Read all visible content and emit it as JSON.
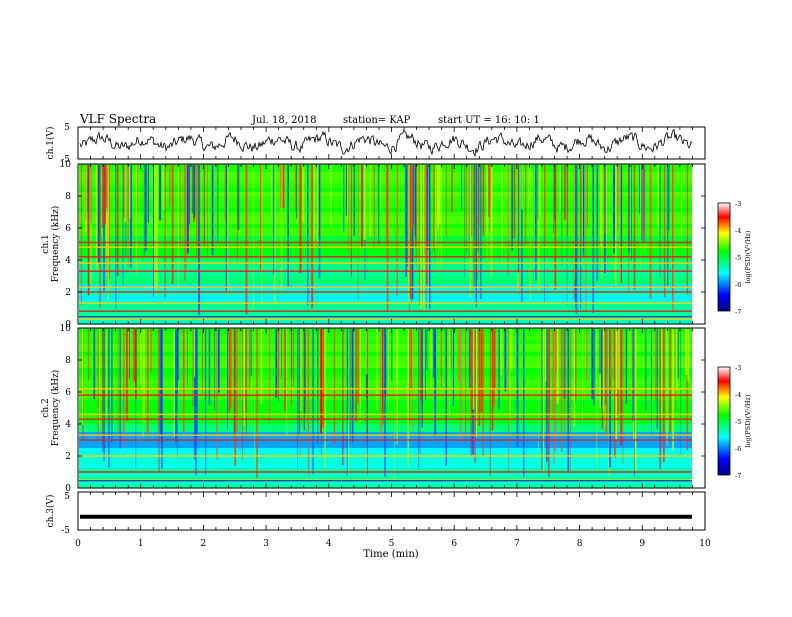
{
  "header": {
    "title": "VLF Spectra",
    "date": "Jul. 18, 2018",
    "station": "station= KAP",
    "start": "start UT = 16: 10: 1"
  },
  "chart_data": [
    {
      "type": "line",
      "ylabel": "ch.1(V)",
      "ylim": [
        -5,
        5
      ],
      "yticks": [
        "5",
        "-5"
      ],
      "xlim": [
        0,
        10
      ],
      "description_values": {
        "baseline": 0,
        "amplitude_approx": 2.5
      }
    },
    {
      "type": "heatmap",
      "ylabel_top": "ch.1",
      "ylabel": "Frequency (kHz)",
      "ylim": [
        0,
        10
      ],
      "yticks": [
        "0",
        "2",
        "4",
        "6",
        "8",
        "10"
      ],
      "xlim": [
        0,
        10
      ],
      "colorbar": {
        "label": "log(PSD)(V²/Hz)",
        "range": [
          -7,
          -3
        ],
        "ticks": [
          "-3",
          "-4",
          "-5",
          "-6",
          "-7"
        ]
      },
      "bands_khz": [
        0.3,
        0.8,
        1.3,
        2.0,
        2.3,
        3.3,
        3.8,
        4.2,
        4.8,
        5.1
      ]
    },
    {
      "type": "heatmap",
      "ylabel_top": "ch.2",
      "ylabel": "Frequency (kHz)",
      "ylim": [
        0,
        10
      ],
      "yticks": [
        "0",
        "2",
        "4",
        "6",
        "8",
        "10"
      ],
      "xlim": [
        0,
        10
      ],
      "colorbar": {
        "label": "log(PSD)(V²/Hz)",
        "range": [
          -7,
          -3
        ],
        "ticks": [
          "-3",
          "-4",
          "-5",
          "-6",
          "-7"
        ]
      },
      "bands_khz": [
        0.5,
        1.0,
        2.0,
        3.0,
        3.3,
        4.3,
        4.6,
        5.8,
        6.2
      ]
    },
    {
      "type": "line",
      "ylabel": "ch.3(V)",
      "ylim": [
        -5,
        5
      ],
      "yticks": [
        "5",
        "-5"
      ],
      "xlim": [
        0,
        10
      ],
      "constant_value": -1.5
    }
  ],
  "xaxis": {
    "label": "Time (min)",
    "ticks": [
      "0",
      "1",
      "2",
      "3",
      "4",
      "5",
      "6",
      "7",
      "8",
      "9",
      "10"
    ]
  }
}
